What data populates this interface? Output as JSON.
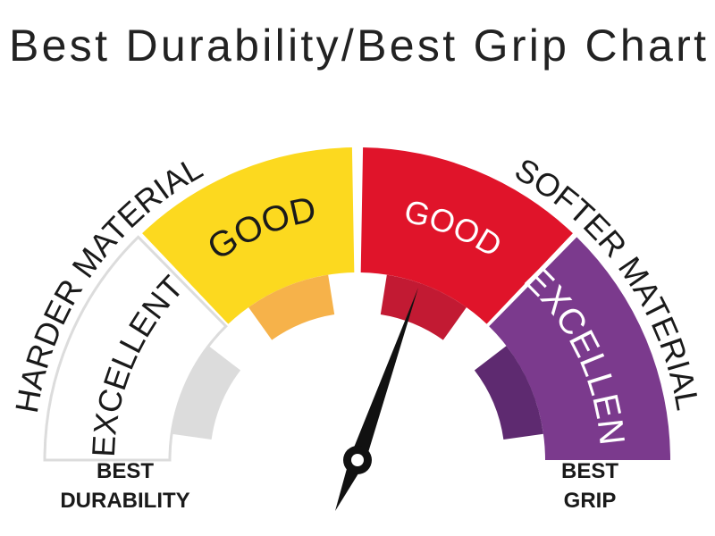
{
  "title": "Best Durability/Best Grip Chart",
  "scale_labels": {
    "left": "HARDER MATERIAL",
    "right": "SOFTER MATERIAL"
  },
  "segments": [
    {
      "label": "EXCELLENT",
      "color": "#ffffff",
      "accent_color": "#dcdcdc",
      "text_color": "#1a1a1a"
    },
    {
      "label": "GOOD",
      "color": "#fcd91f",
      "accent_color": "#f6b24a",
      "text_color": "#1a1a1a"
    },
    {
      "label": "GOOD",
      "color": "#e0142a",
      "accent_color": "#c21a33",
      "text_color": "#ffffff"
    },
    {
      "label": "EXCELLENT",
      "color": "#7b3a8d",
      "accent_color": "#5e2a70",
      "text_color": "#ffffff"
    }
  ],
  "ends": {
    "left": [
      "BEST",
      "DURABILITY"
    ],
    "right": [
      "BEST",
      "GRIP"
    ]
  }
}
